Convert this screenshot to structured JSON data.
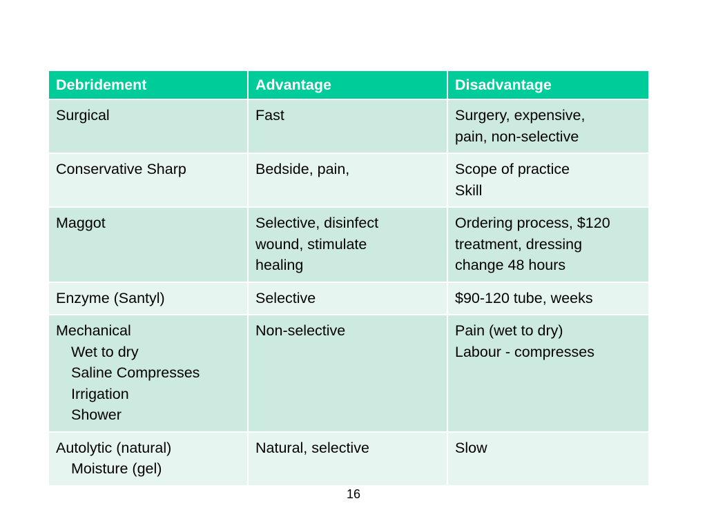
{
  "table": {
    "headers": [
      "Debridement",
      "Advantage",
      "Disadvantage"
    ],
    "rows": [
      {
        "debridement": [
          "Surgical"
        ],
        "advantage": [
          "Fast"
        ],
        "disadvantage": [
          "Surgery, expensive,",
          "pain, non-selective"
        ]
      },
      {
        "debridement": [
          "Conservative Sharp"
        ],
        "advantage": [
          "Bedside, pain,"
        ],
        "disadvantage": [
          "Scope of practice",
          "Skill"
        ]
      },
      {
        "debridement": [
          "Maggot"
        ],
        "advantage": [
          "Selective, disinfect",
          "wound, stimulate",
          "healing"
        ],
        "disadvantage": [
          "Ordering process, $120",
          "treatment, dressing",
          "change 48 hours"
        ]
      },
      {
        "debridement": [
          "Enzyme (Santyl)"
        ],
        "advantage": [
          "Selective"
        ],
        "disadvantage": [
          "$90-120 tube, weeks"
        ]
      },
      {
        "debridement": [
          "Mechanical",
          "Wet to dry",
          "Saline Compresses",
          "Irrigation",
          "Shower"
        ],
        "advantage": [
          "Non-selective"
        ],
        "disadvantage": [
          "Pain (wet to dry)",
          "Labour - compresses"
        ]
      },
      {
        "debridement": [
          "Autolytic (natural)",
          "Moisture (gel)"
        ],
        "advantage": [
          "Natural, selective"
        ],
        "disadvantage": [
          "Slow"
        ]
      }
    ]
  },
  "colors": {
    "header_bg": "#00cc99",
    "row_odd_bg": "#cceadf",
    "row_even_bg": "#e7f5f0"
  },
  "page_number": "16"
}
